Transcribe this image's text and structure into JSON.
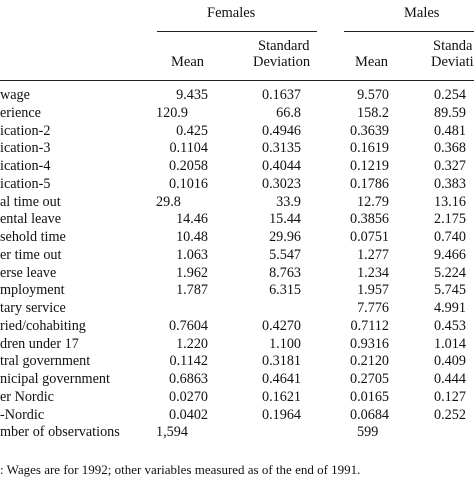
{
  "headers": {
    "females": "Females",
    "males": "Males",
    "mean": "Mean",
    "sd_line1": "Standard",
    "sd_line2": "Deviation",
    "sd_line1_cut": "Standa",
    "sd_line2_cut": "Deviati"
  },
  "rows": [
    {
      "label": "wage",
      "f_mean": "9.435",
      "f_sd": "0.1637",
      "m_mean": "9.570",
      "m_sd": "0.254"
    },
    {
      "label": "erience",
      "f_mean": "120.9",
      "f_sd": "66.8",
      "m_mean": "158.2",
      "m_sd": "89.59",
      "align": "left"
    },
    {
      "label": "ication-2",
      "f_mean": "0.425",
      "f_sd": "0.4946",
      "m_mean": "0.3639",
      "m_sd": "0.481"
    },
    {
      "label": "ication-3",
      "f_mean": "0.1104",
      "f_sd": "0.3135",
      "m_mean": "0.1619",
      "m_sd": "0.368"
    },
    {
      "label": "ication-4",
      "f_mean": "0.2058",
      "f_sd": "0.4044",
      "m_mean": "0.1219",
      "m_sd": "0.327"
    },
    {
      "label": "ication-5",
      "f_mean": "0.1016",
      "f_sd": "0.3023",
      "m_mean": "0.1786",
      "m_sd": "0.383"
    },
    {
      "label": "al time out",
      "f_mean": "29.8",
      "f_sd": "33.9",
      "m_mean": "12.79",
      "m_sd": "13.16",
      "align": "left"
    },
    {
      "label": "ental leave",
      "f_mean": "14.46",
      "f_sd": "15.44",
      "m_mean": "0.3856",
      "m_sd": "2.175"
    },
    {
      "label": "sehold time",
      "f_mean": "10.48",
      "f_sd": "29.96",
      "m_mean": "0.0751",
      "m_sd": "0.740"
    },
    {
      "label": "er time out",
      "f_mean": "1.063",
      "f_sd": "5.547",
      "m_mean": "1.277",
      "m_sd": "9.466"
    },
    {
      "label": "erse leave",
      "f_mean": "1.962",
      "f_sd": "8.763",
      "m_mean": "1.234",
      "m_sd": "5.224"
    },
    {
      "label": "mployment",
      "f_mean": "1.787",
      "f_sd": "6.315",
      "m_mean": "1.957",
      "m_sd": "5.745"
    },
    {
      "label": "tary service",
      "f_mean": "",
      "f_sd": "",
      "m_mean": "7.776",
      "m_sd": "4.991"
    },
    {
      "label": "ried/cohabiting",
      "f_mean": "0.7604",
      "f_sd": "0.4270",
      "m_mean": "0.7112",
      "m_sd": "0.453"
    },
    {
      "label": "dren under 17",
      "f_mean": "1.220",
      "f_sd": "1.100",
      "m_mean": "0.9316",
      "m_sd": "1.014"
    },
    {
      "label": "tral government",
      "f_mean": "0.1142",
      "f_sd": "0.3181",
      "m_mean": "0.2120",
      "m_sd": "0.409"
    },
    {
      "label": "nicipal government",
      "f_mean": "0.6863",
      "f_sd": "0.4641",
      "m_mean": "0.2705",
      "m_sd": "0.444"
    },
    {
      "label": "er Nordic",
      "f_mean": "0.0270",
      "f_sd": "0.1621",
      "m_mean": "0.0165",
      "m_sd": "0.127"
    },
    {
      "label": "-Nordic",
      "f_mean": "0.0402",
      "f_sd": "0.1964",
      "m_mean": "0.0684",
      "m_sd": "0.252"
    },
    {
      "label": "mber of observations",
      "f_mean": "1,594",
      "f_sd": "",
      "m_mean": "599",
      "m_sd": "",
      "align": "left"
    }
  ],
  "footnote": ": Wages are for 1992; other variables measured as of the end of 1991."
}
